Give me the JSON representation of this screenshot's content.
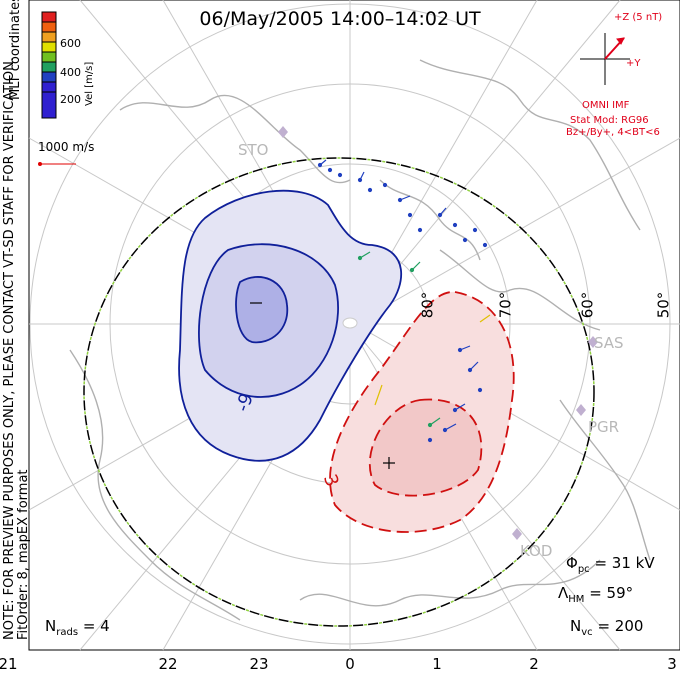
{
  "title": "06/May/2005  14:00–14:02  UT",
  "side_text": {
    "line1": "NOTE: FOR PREVIEW PURPOSES ONLY, PLEASE CONTACT VT-SD STAFF FOR VERIFICATION.",
    "line2": "FitOrder: 8, mapEX format",
    "coords": "MLT coordinates"
  },
  "colorbar": {
    "label": "Vel [m/s]",
    "ticks": [
      "600",
      "400",
      "200"
    ],
    "colors": [
      "#e02020",
      "#f06010",
      "#f0a020",
      "#e0e000",
      "#70c020",
      "#20a060",
      "#2040c0",
      "#3020d0"
    ]
  },
  "scale_vector": "1000 m/s",
  "imf": {
    "z_label": "+Z (5 nT)",
    "y_label": "+Y",
    "source": "OMNI IMF",
    "stat_mod": "Stat Mod: RG96",
    "condition": "Bz+/By+, 4<BT<6"
  },
  "stations": [
    "STO",
    "SAS",
    "PGR",
    "KOD"
  ],
  "lat_labels": [
    "80°",
    "70°",
    "60°",
    "50°"
  ],
  "mlt_labels": [
    "21",
    "22",
    "23",
    "0",
    "1",
    "2",
    "3"
  ],
  "contour_labels": [
    "-9",
    "3"
  ],
  "stats": {
    "phi_pc": "= 31 kV",
    "lambda_hm": "= 59°",
    "n_vc": "= 200",
    "n_rads": "= 4"
  }
}
